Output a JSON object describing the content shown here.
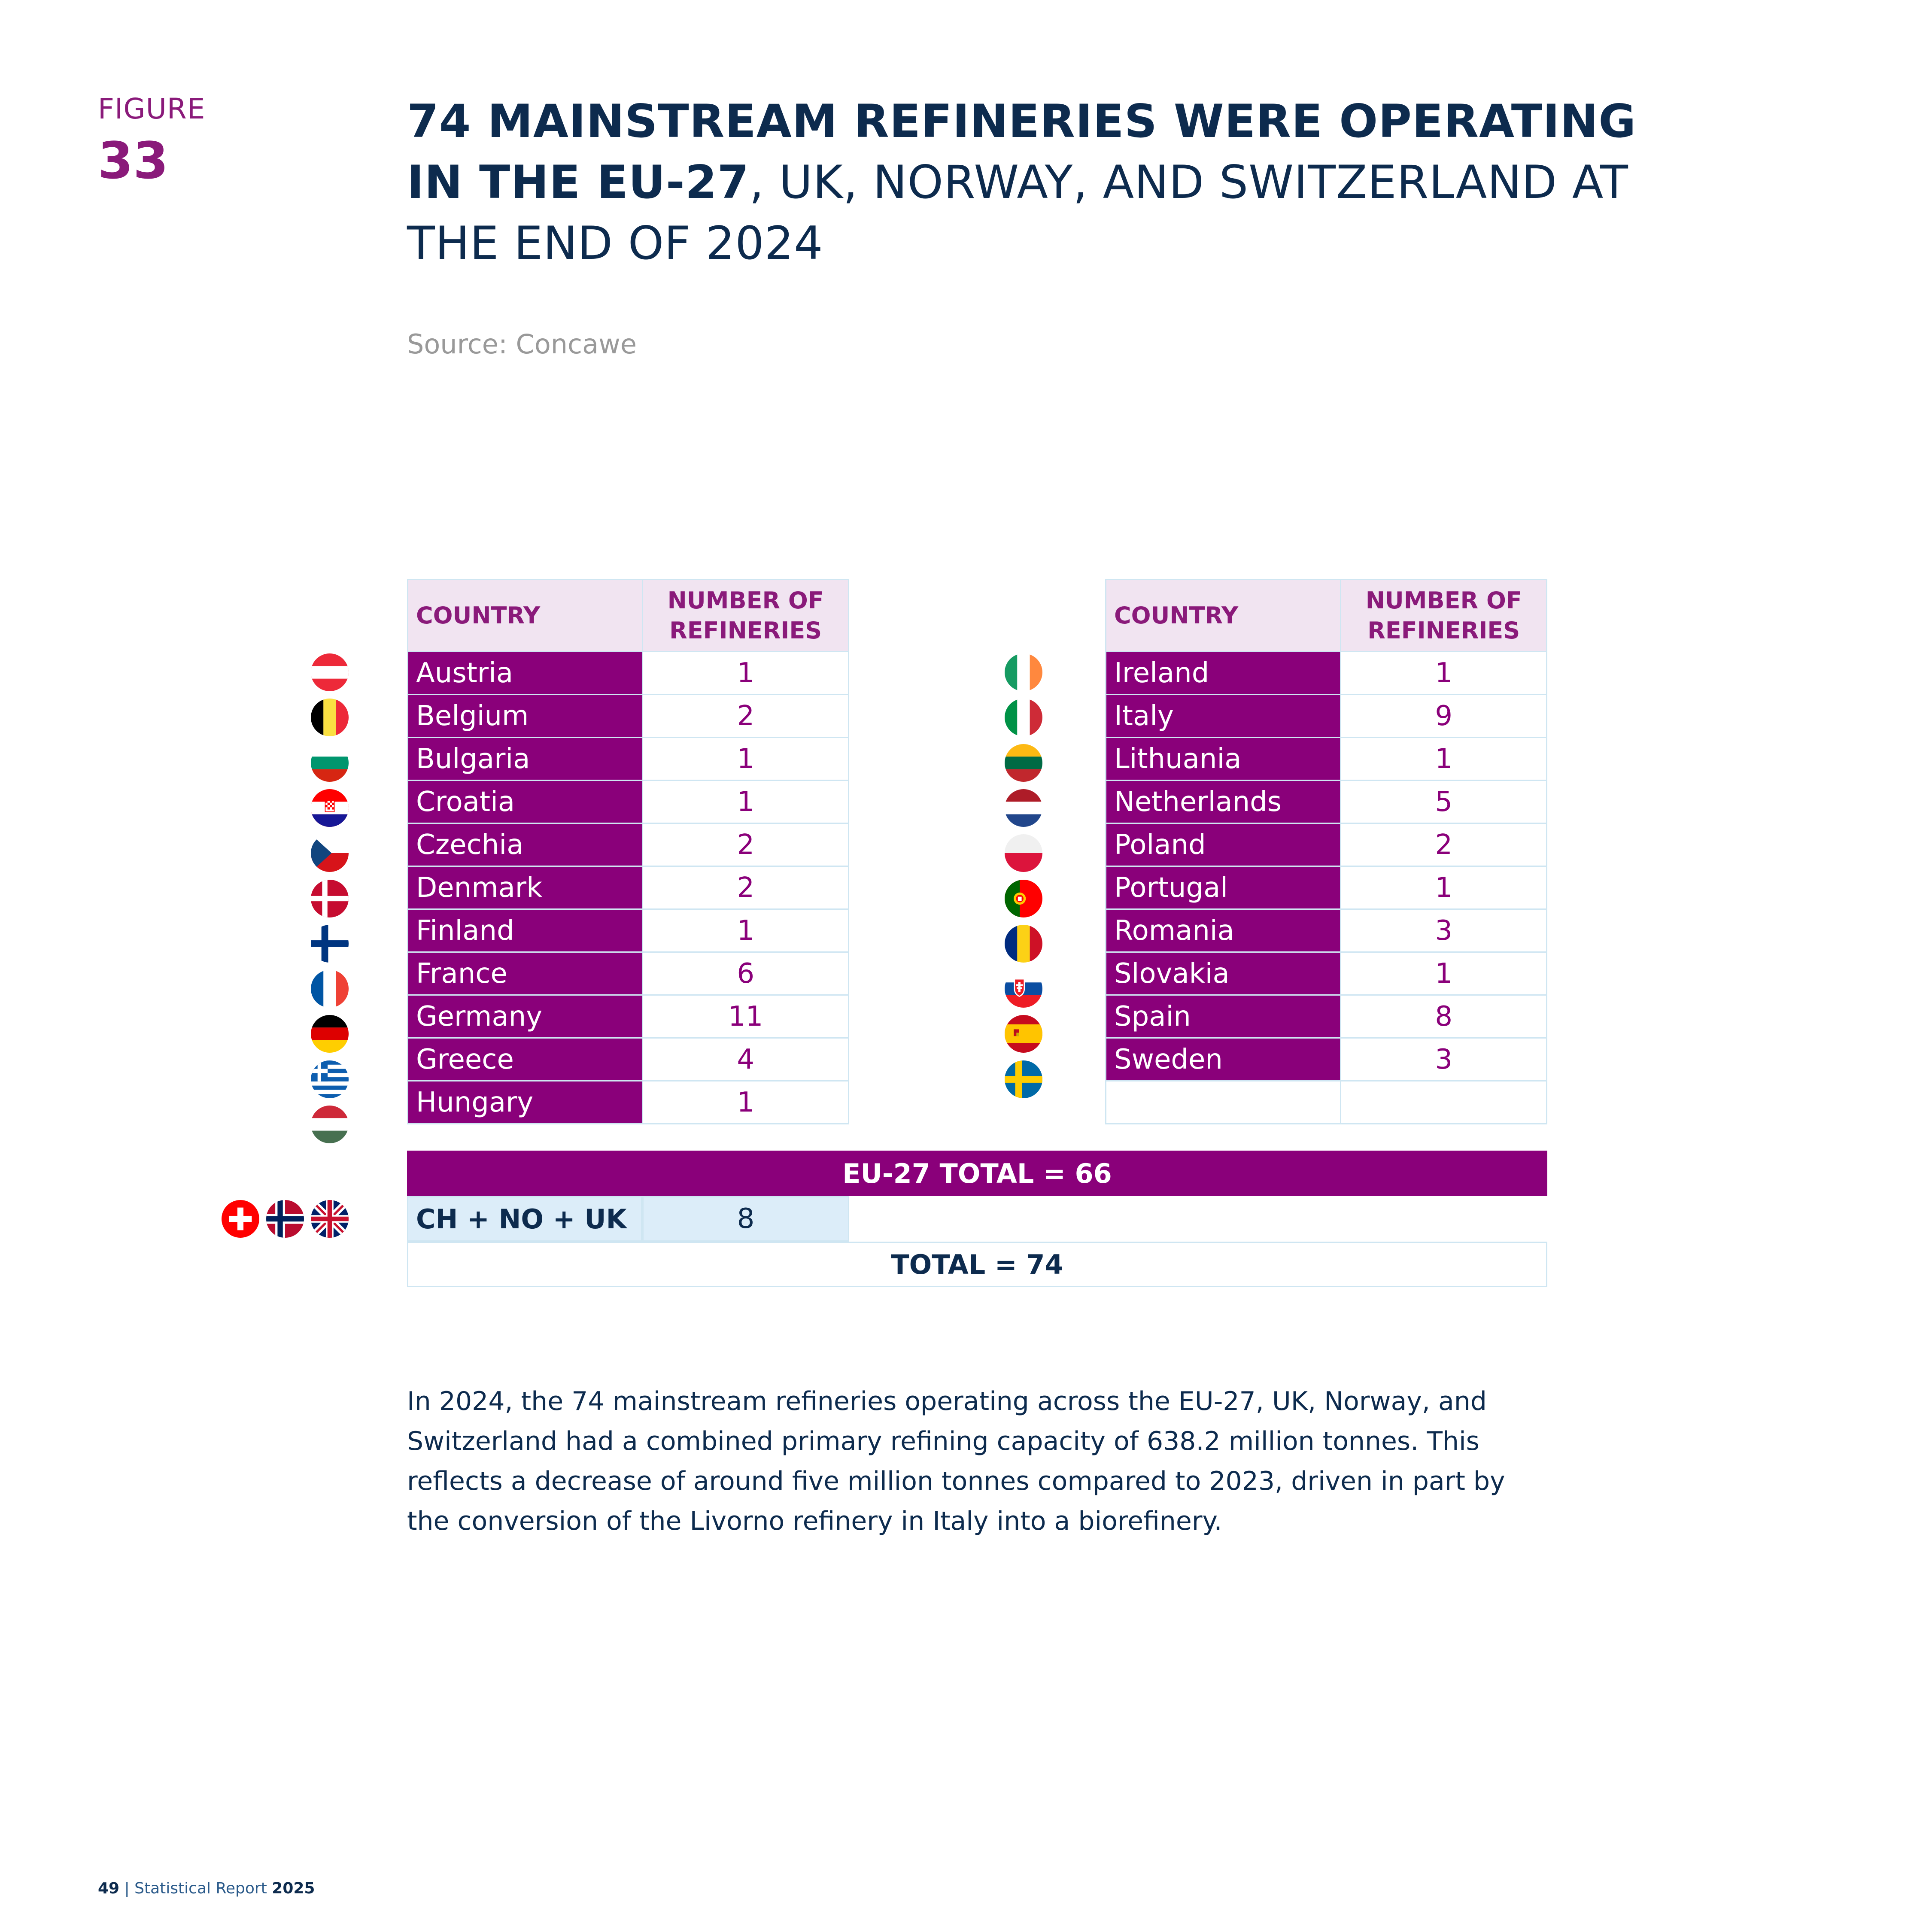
{
  "figure": {
    "label": "FIGURE",
    "number": "33"
  },
  "title": {
    "bold": "74 MAINSTREAM REFINERIES WERE OPERATING IN THE EU-27",
    "regular": ", UK, NORWAY, AND SWITZERLAND AT THE END OF 2024"
  },
  "source": "Source: Concawe",
  "table": {
    "header_country": "COUNTRY",
    "header_number": "NUMBER OF REFINERIES",
    "left_rows": [
      {
        "country": "Austria",
        "count": "1",
        "flag": "austria-flag-icon"
      },
      {
        "country": "Belgium",
        "count": "2",
        "flag": "belgium-flag-icon"
      },
      {
        "country": "Bulgaria",
        "count": "1",
        "flag": "bulgaria-flag-icon"
      },
      {
        "country": "Croatia",
        "count": "1",
        "flag": "croatia-flag-icon"
      },
      {
        "country": "Czechia",
        "count": "2",
        "flag": "czechia-flag-icon"
      },
      {
        "country": "Denmark",
        "count": "2",
        "flag": "denmark-flag-icon"
      },
      {
        "country": "Finland",
        "count": "1",
        "flag": "finland-flag-icon"
      },
      {
        "country": "France",
        "count": "6",
        "flag": "france-flag-icon"
      },
      {
        "country": "Germany",
        "count": "11",
        "flag": "germany-flag-icon"
      },
      {
        "country": "Greece",
        "count": "4",
        "flag": "greece-flag-icon"
      },
      {
        "country": "Hungary",
        "count": "1",
        "flag": "hungary-flag-icon"
      }
    ],
    "right_rows": [
      {
        "country": "Ireland",
        "count": "1",
        "flag": "ireland-flag-icon"
      },
      {
        "country": "Italy",
        "count": "9",
        "flag": "italy-flag-icon"
      },
      {
        "country": "Lithuania",
        "count": "1",
        "flag": "lithuania-flag-icon"
      },
      {
        "country": "Netherlands",
        "count": "5",
        "flag": "netherlands-flag-icon"
      },
      {
        "country": "Poland",
        "count": "2",
        "flag": "poland-flag-icon"
      },
      {
        "country": "Portugal",
        "count": "1",
        "flag": "portugal-flag-icon"
      },
      {
        "country": "Romania",
        "count": "3",
        "flag": "romania-flag-icon"
      },
      {
        "country": "Slovakia",
        "count": "1",
        "flag": "slovakia-flag-icon"
      },
      {
        "country": "Spain",
        "count": "8",
        "flag": "spain-flag-icon"
      },
      {
        "country": "Sweden",
        "count": "3",
        "flag": "sweden-flag-icon"
      }
    ],
    "eu_total": "EU-27 TOTAL = 66",
    "other_label": "CH + NO + UK",
    "other_count": "8",
    "grand_total": "TOTAL = 74"
  },
  "body_text": "In 2024, the 74 mainstream refineries operating across the EU-27, UK, Norway, and Switzerland had a combined primary refining capacity of 638.2 million tonnes. This reflects a decrease of around five million tonnes compared to 2023, driven in part by the conversion of the Livorno refinery in Italy into a biorefinery.",
  "footer": {
    "page": "49",
    "separator": "|",
    "report": "Statistical Report",
    "year": "2025"
  },
  "colors": {
    "accent": "#8a007a",
    "navy": "#0d2b4e",
    "header_bg": "#f1e4f1",
    "border": "#cfe6f2",
    "other_bg": "#dcedf9"
  }
}
